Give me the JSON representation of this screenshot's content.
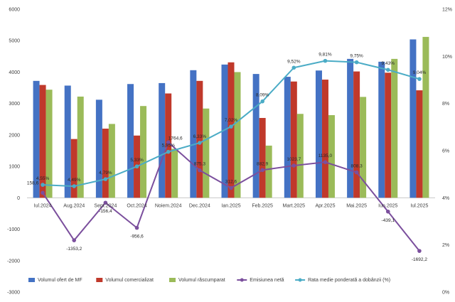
{
  "chart_data": {
    "type": "bar",
    "categories": [
      "Iul.2024",
      "Aug.2024",
      "Sept.2024",
      "Oct.2024",
      "Noiem.2024",
      "Dec.2024",
      "Ian.2025",
      "Feb.2025",
      "Mart.2025",
      "Apr.2025",
      "Mai.2025",
      "Iun.2025",
      "Iul.2025"
    ],
    "y_left": {
      "min": -3000,
      "max": 6000,
      "step": 1000
    },
    "y_right": {
      "min": 0,
      "max": 12,
      "step": 2,
      "suffix": "%"
    },
    "bar_series": [
      {
        "name": "Volumul ofert de MF",
        "color": "#4472C4",
        "values": [
          3720,
          3570,
          3120,
          3620,
          3650,
          4060,
          4240,
          3940,
          3850,
          4050,
          4420,
          4330,
          5040
        ]
      },
      {
        "name": "Volumul comercializat",
        "color": "#C0392B",
        "values": [
          3590,
          1870,
          2200,
          1980,
          3320,
          3720,
          4310,
          2540,
          3700,
          3760,
          4020,
          3980,
          3420
        ]
      },
      {
        "name": "Volumul răscumparat",
        "color": "#9BBB59",
        "values": [
          3440,
          3220,
          2350,
          2920,
          1560,
          2840,
          4000,
          1660,
          2670,
          2630,
          3210,
          4420,
          5120
        ]
      }
    ],
    "line_series": [
      {
        "name": "Emisiunea netă",
        "color": "#7B4F9D",
        "axis": "left",
        "values": [
          158.6,
          -1353.2,
          -156.4,
          -956.6,
          1764.6,
          875.3,
          312.6,
          882.9,
          1023.7,
          1135.0,
          808.3,
          -439.1,
          -1692.2
        ],
        "labels": [
          "158,6",
          "-1353,2",
          "-156,4",
          "-956,6",
          "1764,6",
          "875,3",
          "312,6",
          "882,9",
          "1023,7",
          "1135,0",
          "808,3",
          "-439,1",
          "-1692,2"
        ]
      },
      {
        "name": "Rata medie ponderată a dobânzii (%)",
        "color": "#4BACC6",
        "axis": "right",
        "values": [
          4.55,
          4.49,
          4.79,
          5.33,
          5.95,
          6.33,
          7.02,
          8.09,
          9.52,
          9.81,
          9.75,
          9.43,
          9.04
        ],
        "labels": [
          "4,55%",
          "4,49%",
          "4,79%",
          "5,33%",
          "5,95%",
          "6,33%",
          "7,02%",
          "8,09%",
          "9,52%",
          "9,81%",
          "9,75%",
          "9,43%",
          "9,04%"
        ]
      }
    ],
    "legend_position": "bottom",
    "grid": false
  }
}
